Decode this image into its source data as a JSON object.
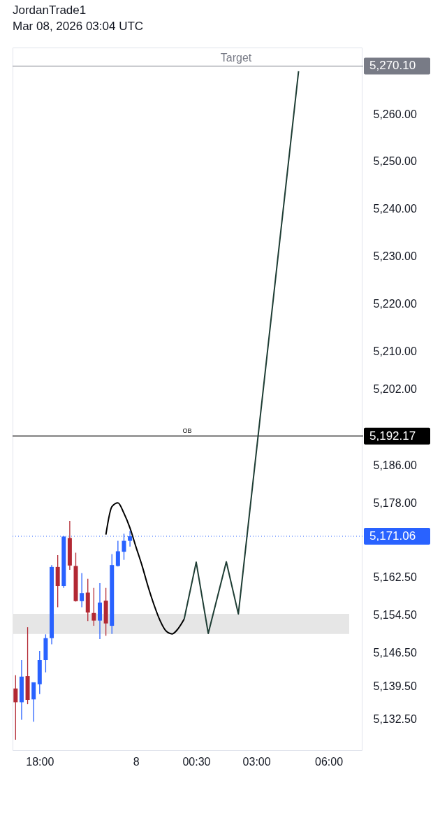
{
  "chart_data": {
    "type": "candlestick",
    "title": "JordanTrade1",
    "subtitle": "Mar 08, 2026 03:04 UTC",
    "categories": [
      null,
      null,
      null,
      null,
      "18:00",
      null,
      null,
      null,
      null,
      null,
      null,
      null,
      null,
      null,
      null,
      null,
      null,
      null,
      null,
      null,
      "8",
      null,
      null,
      null,
      null,
      null,
      null,
      null,
      null,
      null,
      "00:30",
      null,
      null,
      null,
      null,
      null,
      null,
      null,
      null,
      null,
      "03:00",
      null,
      null,
      null,
      null,
      null,
      null,
      null,
      null,
      null,
      null,
      null,
      "06:00",
      null,
      null,
      null,
      null,
      null
    ],
    "ohlc": [
      [
        5139.0,
        5141.8,
        5128.2,
        5136.1
      ],
      [
        5136.1,
        5145.0,
        5132.4,
        5141.5
      ],
      [
        5141.6,
        5151.9,
        5135.7,
        5136.6
      ],
      [
        5136.7,
        5140.3,
        5132.0,
        5140.3
      ],
      [
        5139.9,
        5146.9,
        5137.8,
        5145.0
      ],
      [
        5145.0,
        5150.4,
        5142.4,
        5149.6
      ],
      [
        5149.6,
        5165.0,
        5148.3,
        5164.6
      ],
      [
        5164.6,
        5167.1,
        5156.1,
        5160.6
      ],
      [
        5160.6,
        5171.1,
        5160.2,
        5171.0
      ],
      [
        5170.7,
        5174.3,
        5164.0,
        5164.9
      ],
      [
        5164.8,
        5167.6,
        5157.3,
        5157.4
      ],
      [
        5157.4,
        5163.3,
        5156.1,
        5159.1
      ],
      [
        5159.2,
        5162.1,
        5153.2,
        5155.0
      ],
      [
        5154.9,
        5160.2,
        5152.2,
        5153.3
      ],
      [
        5153.3,
        5161.2,
        5149.4,
        5157.1
      ],
      [
        5157.5,
        5160.2,
        5150.1,
        5152.7
      ],
      [
        5152.2,
        5167.3,
        5150.5,
        5165.0
      ],
      [
        5164.8,
        5170.1,
        5164.7,
        5167.9
      ],
      [
        5167.8,
        5171.6,
        5166.1,
        5170.1
      ],
      [
        5170.1,
        5172.2,
        5168.9,
        5171.06
      ],
      null,
      null,
      null,
      null,
      null,
      null,
      null,
      null,
      null,
      null,
      null,
      null,
      null,
      null,
      null,
      null,
      null,
      null,
      null,
      null,
      null,
      null,
      null,
      null,
      null,
      null,
      null,
      null,
      null,
      null,
      null,
      null,
      null,
      null,
      null,
      null,
      null,
      null
    ],
    "colors": [
      "#b22833",
      "#2962ff",
      "#b22833",
      "#2962ff",
      "#2962ff",
      "#2962ff",
      "#2962ff",
      "#b22833",
      "#2962ff",
      "#b22833",
      "#b22833",
      "#2962ff",
      "#b22833",
      "#b22833",
      "#2962ff",
      "#b22833",
      "#2962ff",
      "#2962ff",
      "#2962ff",
      "#2962ff",
      null,
      null,
      null,
      null,
      null,
      null,
      null,
      null,
      null,
      null,
      null,
      null,
      null,
      null,
      null,
      null,
      null,
      null,
      null,
      null,
      null,
      null,
      null,
      null,
      null,
      null,
      null,
      null,
      null,
      null,
      null,
      null,
      null,
      null,
      null,
      null,
      null,
      null
    ],
    "series": [
      {
        "type": "line",
        "color": "#000000",
        "values": [
          null,
          null,
          null,
          null,
          null,
          null,
          null,
          null,
          null,
          null,
          null,
          null,
          null,
          null,
          null,
          5171.4,
          5177.3,
          5178.1,
          5175.9,
          5172.8,
          5168.8,
          5164.9,
          5160.5,
          5156.6,
          5153.3,
          5151.1,
          5150.5,
          5151.6,
          5153.6,
          null,
          null,
          null,
          null,
          null,
          null,
          null,
          null,
          null,
          null,
          null,
          null,
          null,
          null,
          null,
          null,
          null,
          null,
          null,
          null,
          null,
          null,
          null,
          null,
          null,
          null,
          null,
          null,
          null
        ]
      },
      {
        "type": "line",
        "color": "#1e3d34",
        "values": [
          null,
          null,
          null,
          null,
          null,
          null,
          null,
          null,
          null,
          null,
          null,
          null,
          null,
          null,
          null,
          null,
          null,
          null,
          null,
          null,
          null,
          null,
          null,
          null,
          null,
          null,
          null,
          null,
          5153.6,
          null,
          5165.6,
          null,
          5150.6,
          null,
          null,
          5165.7,
          null,
          5154.7,
          null,
          null,
          null,
          null,
          null,
          null,
          null,
          null,
          null,
          5269,
          null,
          null,
          null,
          null,
          null,
          null,
          null,
          null,
          null,
          null
        ]
      }
    ],
    "ylim": [
      5126,
      5274
    ],
    "yticks": [
      {
        "value": 5132.5,
        "label": "5,132.50"
      },
      {
        "value": 5139.5,
        "label": "5,139.50"
      },
      {
        "value": 5146.5,
        "label": "5,146.50"
      },
      {
        "value": 5154.5,
        "label": "5,154.50"
      },
      {
        "value": 5162.5,
        "label": "5,162.50"
      },
      {
        "value": 5178,
        "label": "5,178.00"
      },
      {
        "value": 5186,
        "label": "5,186.00"
      },
      {
        "value": 5202,
        "label": "5,202.00"
      },
      {
        "value": 5210,
        "label": "5,210.00"
      },
      {
        "value": 5220,
        "label": "5,220.00"
      },
      {
        "value": 5230,
        "label": "5,230.00"
      },
      {
        "value": 5240,
        "label": "5,240.00"
      },
      {
        "value": 5250,
        "label": "5,250.00"
      },
      {
        "value": 5260,
        "label": "5,260.00"
      }
    ],
    "ref_lines": [
      {
        "axis": "y",
        "value": 5270.1,
        "label": "Target",
        "color": "#787b86"
      },
      {
        "axis": "y",
        "value": 5192.17,
        "label": "OB",
        "color": "#000000"
      },
      {
        "axis": "y",
        "value": 5171.06,
        "color": "#2962ff",
        "line_style": "dotted"
      }
    ],
    "annotations": [
      "5,270.10",
      "5,192.17",
      "5,171.06"
    ],
    "bands": [
      {
        "axis": "y",
        "from": 5150.5,
        "to": 5154.7,
        "color": "#e6e6e6"
      }
    ],
    "grid": false
  }
}
